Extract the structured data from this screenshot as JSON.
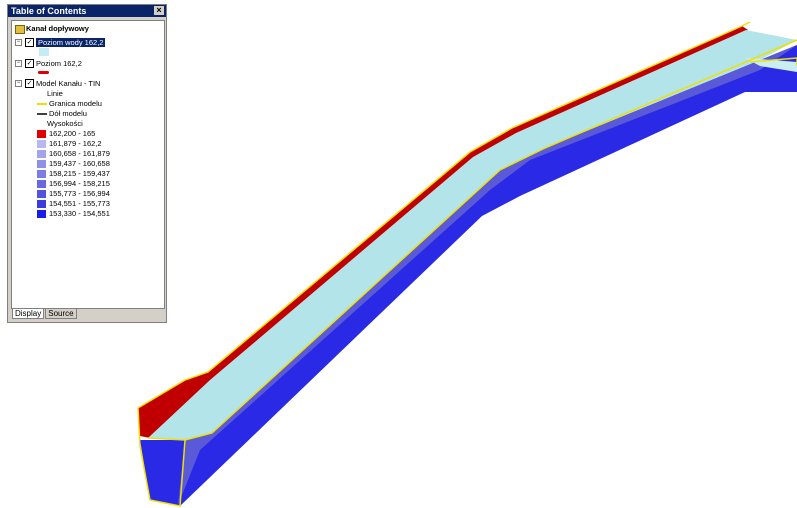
{
  "window": {
    "title": "Table of Contents",
    "close": "×"
  },
  "root": {
    "label": "Kanał dopływowy"
  },
  "layers": [
    {
      "label": "Poziom wody 162,2",
      "selected": true
    },
    {
      "label": "Poziom 162,2",
      "selected": false
    },
    {
      "label": "Model Kanału - TIN",
      "selected": false
    }
  ],
  "legend": {
    "lines_heading": "Linie",
    "lines": [
      {
        "label": "Granica modelu",
        "color": "#f0e000"
      },
      {
        "label": "Dół modelu",
        "color": "#404040"
      }
    ],
    "elevation_heading": "Wysokości",
    "classes": [
      {
        "label": "162,200 - 165",
        "color": "#e00000"
      },
      {
        "label": "161,879 - 162,2",
        "color": "#b8b8f0"
      },
      {
        "label": "160,658 - 161,879",
        "color": "#a4a4ec"
      },
      {
        "label": "159,437 - 160,658",
        "color": "#9090e8"
      },
      {
        "label": "158,215 - 159,437",
        "color": "#7c7ce4"
      },
      {
        "label": "156,994 - 158,215",
        "color": "#6868e0"
      },
      {
        "label": "155,773 - 156,994",
        "color": "#5252dc"
      },
      {
        "label": "154,551 - 155,773",
        "color": "#3c3cde"
      },
      {
        "label": "153,330 - 154,551",
        "color": "#1c1ce8"
      }
    ]
  },
  "tabs": [
    "Display",
    "Source"
  ]
}
